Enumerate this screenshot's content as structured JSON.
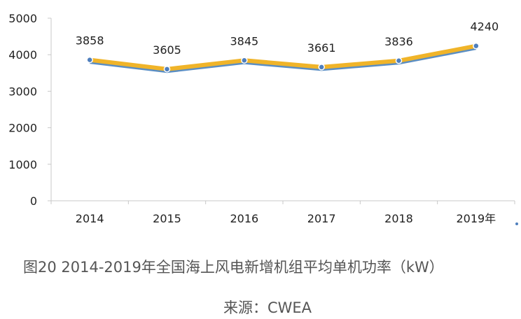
{
  "chart_data": {
    "type": "line",
    "categories": [
      "2014",
      "2015",
      "2016",
      "2017",
      "2018",
      "2019年"
    ],
    "series": [
      {
        "values": [
          3858,
          3605,
          3845,
          3661,
          3836,
          4240
        ],
        "color": "#f0b429",
        "shadow_color": "#5b8ec3"
      }
    ],
    "ylim": [
      0,
      5000
    ],
    "yticks": [
      0,
      1000,
      2000,
      3000,
      4000,
      5000
    ],
    "data_labels": [
      "3858",
      "3605",
      "3845",
      "3661",
      "3836",
      "4240"
    ],
    "grid": false
  },
  "caption": "图20  2014-2019年全国海上风电新增机组平均单机功率（kW）",
  "source": "来源：CWEA"
}
